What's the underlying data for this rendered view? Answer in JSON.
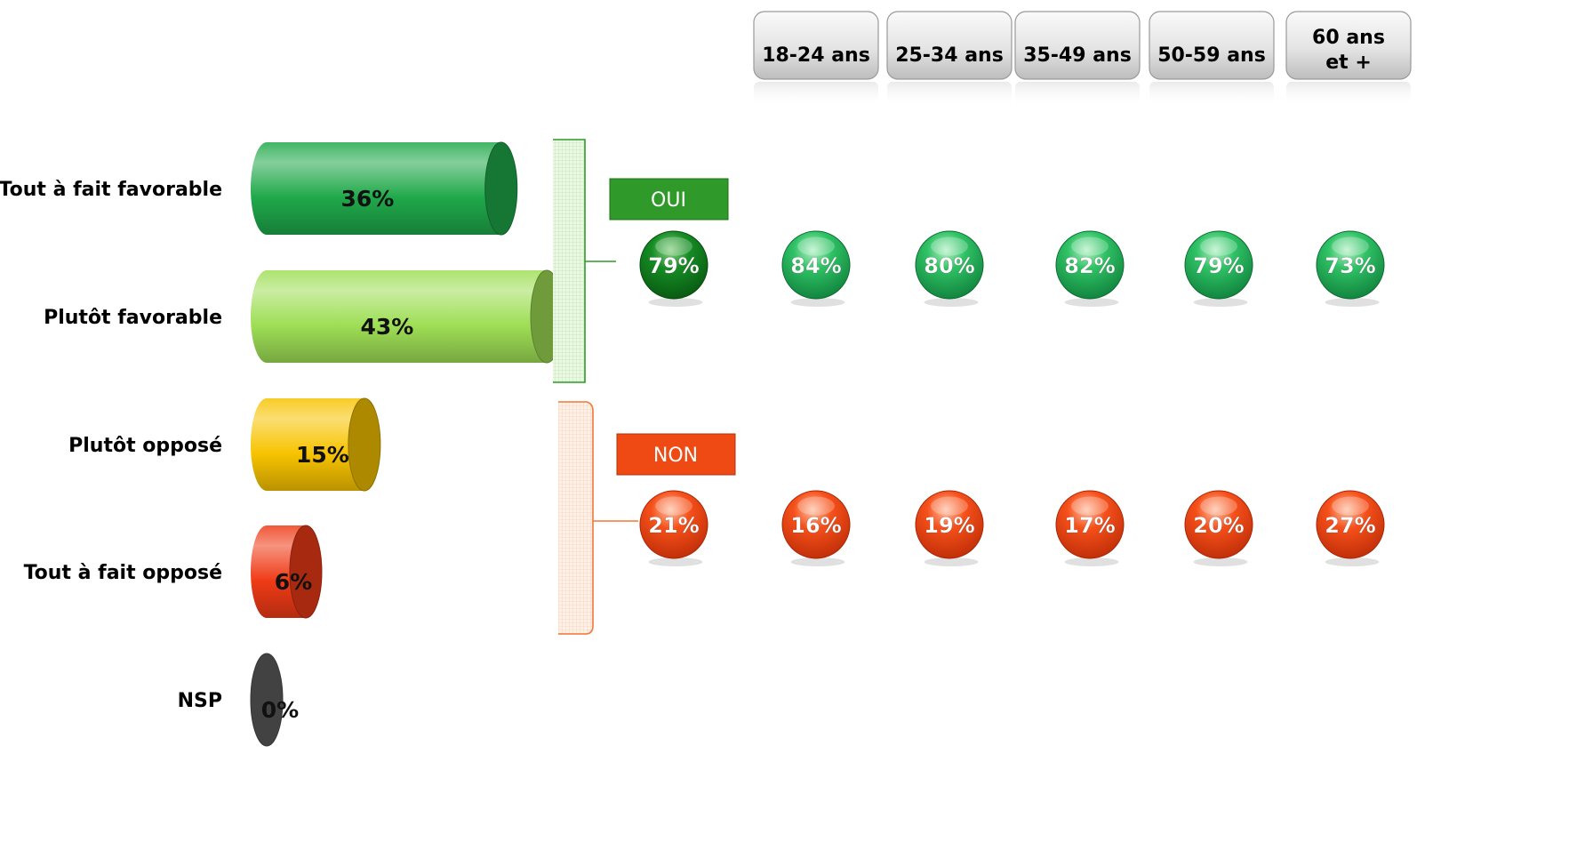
{
  "chart_data": {
    "type": "bar",
    "orientation": "horizontal",
    "style": "3d-cylinder",
    "categories": [
      "Tout à fait favorable",
      "Plutôt favorable",
      "Plutôt opposé",
      "Tout à fait opposé",
      "NSP"
    ],
    "values": [
      36,
      43,
      15,
      6,
      0
    ],
    "value_labels": [
      "36%",
      "43%",
      "15%",
      "6%",
      "0%"
    ],
    "bar_colors": [
      "#1fa84a",
      "#9ede55",
      "#f7c300",
      "#ef3b16",
      "#5e5e5e"
    ],
    "xlim": [
      0,
      43
    ],
    "groups": [
      {
        "label": "OUI",
        "members": [
          "Tout à fait favorable",
          "Plutôt favorable"
        ],
        "total": "79%",
        "color": "#2f9a2a"
      },
      {
        "label": "NON",
        "members": [
          "Plutôt opposé",
          "Tout à fait opposé"
        ],
        "total": "21%",
        "color": "#f04a14"
      }
    ],
    "age_breakdown": {
      "columns": [
        "18-24 ans",
        "25-34 ans",
        "35-49 ans",
        "50-59 ans",
        "60 ans et +"
      ],
      "series": [
        {
          "name": "OUI",
          "labels": [
            "84%",
            "80%",
            "82%",
            "79%",
            "73%"
          ],
          "values": [
            84,
            80,
            82,
            79,
            73
          ]
        },
        {
          "name": "NON",
          "labels": [
            "16%",
            "19%",
            "17%",
            "20%",
            "27%"
          ],
          "values": [
            16,
            19,
            17,
            20,
            27
          ]
        }
      ]
    }
  }
}
